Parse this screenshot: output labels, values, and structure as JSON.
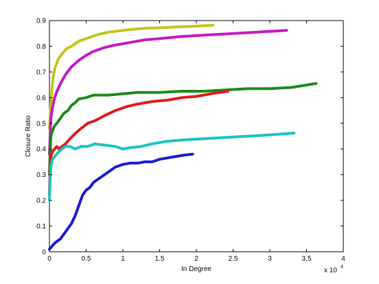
{
  "chart_data": {
    "type": "line",
    "xlabel": "In Degree",
    "ylabel": "Closure Ratio",
    "x_scale_label": "x 10",
    "x_scale_exponent": "4",
    "xlim": [
      0,
      40000
    ],
    "ylim": [
      0,
      0.9
    ],
    "xticks": [
      0,
      5000,
      10000,
      15000,
      20000,
      25000,
      30000,
      35000,
      40000
    ],
    "xtick_labels": [
      "0",
      "0.5",
      "1",
      "1.5",
      "2",
      "2.5",
      "3",
      "3.5",
      "4"
    ],
    "yticks": [
      0,
      0.1,
      0.2,
      0.3,
      0.4,
      0.5,
      0.6,
      0.7,
      0.8,
      0.9
    ],
    "ytick_labels": [
      "0",
      "0.1",
      "0.2",
      "0.3",
      "0.4",
      "0.5",
      "0.6",
      "0.7",
      "0.8",
      "0.9"
    ],
    "grid": false,
    "legend": "none",
    "series": [
      {
        "color": "#c4c41a",
        "x": [
          0,
          150,
          300,
          500,
          800,
          1200,
          1700,
          2300,
          3000,
          4000,
          5000,
          6500,
          8000,
          9500,
          11000,
          13000,
          15000,
          17000,
          19000,
          21000,
          22300
        ],
        "y": [
          0.48,
          0.55,
          0.62,
          0.68,
          0.72,
          0.75,
          0.77,
          0.79,
          0.8,
          0.82,
          0.83,
          0.845,
          0.855,
          0.86,
          0.865,
          0.87,
          0.872,
          0.875,
          0.877,
          0.88,
          0.882
        ]
      },
      {
        "color": "#c41ac4",
        "x": [
          0,
          100,
          200,
          400,
          700,
          1100,
          1600,
          2200,
          3000,
          4000,
          5000,
          6000,
          7500,
          9000,
          11000,
          13000,
          15000,
          18000,
          21000,
          24000,
          27000,
          30000,
          32300
        ],
        "y": [
          0.38,
          0.46,
          0.52,
          0.56,
          0.6,
          0.63,
          0.66,
          0.69,
          0.72,
          0.745,
          0.765,
          0.78,
          0.795,
          0.805,
          0.815,
          0.825,
          0.83,
          0.838,
          0.843,
          0.848,
          0.853,
          0.858,
          0.862
        ]
      },
      {
        "color": "#1a8a1a",
        "x": [
          0,
          100,
          200,
          400,
          700,
          1000,
          1500,
          2000,
          2500,
          3000,
          3500,
          4000,
          5000,
          6000,
          7000,
          8000,
          10000,
          12000,
          15000,
          18000,
          21000,
          24000,
          27000,
          30000,
          33000,
          36300
        ],
        "y": [
          0.3,
          0.4,
          0.45,
          0.47,
          0.49,
          0.5,
          0.52,
          0.54,
          0.55,
          0.57,
          0.58,
          0.595,
          0.6,
          0.61,
          0.61,
          0.61,
          0.615,
          0.62,
          0.62,
          0.625,
          0.625,
          0.63,
          0.635,
          0.635,
          0.64,
          0.655
        ]
      },
      {
        "color": "#e01a1a",
        "x": [
          0,
          100,
          200,
          400,
          700,
          1000,
          1300,
          1700,
          2200,
          2800,
          3500,
          4300,
          5200,
          6200,
          7500,
          9000,
          10500,
          12000,
          14000,
          16000,
          18000,
          20000,
          22000,
          24300
        ],
        "y": [
          0.22,
          0.33,
          0.37,
          0.39,
          0.4,
          0.41,
          0.4,
          0.41,
          0.42,
          0.44,
          0.46,
          0.48,
          0.5,
          0.51,
          0.53,
          0.55,
          0.565,
          0.575,
          0.585,
          0.59,
          0.6,
          0.605,
          0.615,
          0.625
        ]
      },
      {
        "color": "#1ac4c4",
        "x": [
          0,
          100,
          200,
          400,
          700,
          1000,
          1300,
          1700,
          2200,
          2800,
          3500,
          4300,
          5200,
          6200,
          7500,
          9000,
          10000,
          11000,
          12500,
          14000,
          16000,
          18000,
          21000,
          24000,
          27000,
          30000,
          33300
        ],
        "y": [
          0.2,
          0.28,
          0.33,
          0.36,
          0.37,
          0.38,
          0.39,
          0.4,
          0.41,
          0.41,
          0.4,
          0.41,
          0.41,
          0.42,
          0.415,
          0.41,
          0.4,
          0.405,
          0.41,
          0.42,
          0.43,
          0.435,
          0.44,
          0.445,
          0.45,
          0.455,
          0.462
        ]
      },
      {
        "color": "#1a1ad0",
        "x": [
          0,
          300,
          600,
          1000,
          1500,
          2000,
          2500,
          3000,
          3500,
          4000,
          4500,
          5000,
          5500,
          6000,
          7000,
          8000,
          9000,
          10000,
          11000,
          12000,
          13000,
          14000,
          15000,
          16000,
          17000,
          18000,
          19500
        ],
        "y": [
          0.01,
          0.02,
          0.03,
          0.04,
          0.05,
          0.07,
          0.09,
          0.11,
          0.14,
          0.18,
          0.22,
          0.24,
          0.25,
          0.27,
          0.29,
          0.31,
          0.33,
          0.34,
          0.345,
          0.345,
          0.35,
          0.35,
          0.36,
          0.365,
          0.37,
          0.375,
          0.38
        ]
      }
    ]
  }
}
